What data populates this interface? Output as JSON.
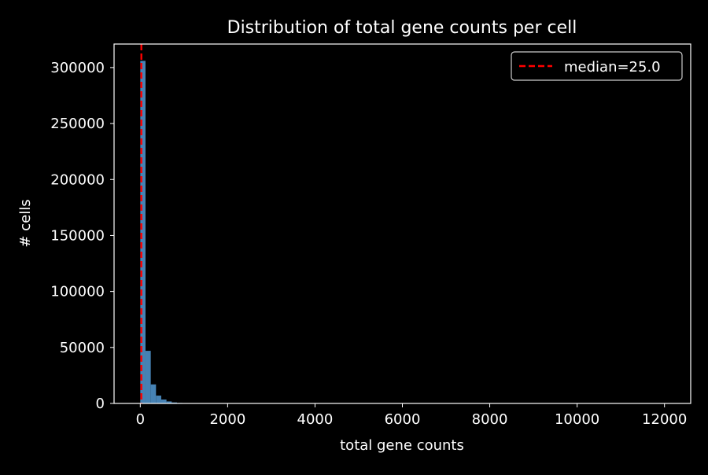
{
  "chart_data": {
    "type": "bar",
    "title": "Distribution of total gene counts per cell",
    "xlabel": "total gene counts",
    "ylabel": "# cells",
    "xlim": [
      -600,
      12600
    ],
    "ylim": [
      0,
      321000
    ],
    "x_ticks": [
      0,
      2000,
      4000,
      6000,
      8000,
      10000,
      12000
    ],
    "y_ticks": [
      0,
      50000,
      100000,
      150000,
      200000,
      250000,
      300000
    ],
    "bin_width": 120,
    "bins": [
      {
        "x0": 0,
        "x1": 120,
        "count": 306000
      },
      {
        "x0": 120,
        "x1": 240,
        "count": 47000
      },
      {
        "x0": 240,
        "x1": 360,
        "count": 17000
      },
      {
        "x0": 360,
        "x1": 480,
        "count": 7000
      },
      {
        "x0": 480,
        "x1": 600,
        "count": 3500
      },
      {
        "x0": 600,
        "x1": 720,
        "count": 1800
      },
      {
        "x0": 720,
        "x1": 840,
        "count": 900
      },
      {
        "x0": 840,
        "x1": 960,
        "count": 450
      },
      {
        "x0": 960,
        "x1": 1080,
        "count": 250
      },
      {
        "x0": 1080,
        "x1": 1200,
        "count": 150
      }
    ],
    "bar_color": "#4682b4",
    "median": {
      "value": 25.0,
      "label": "median=25.0",
      "color": "#ff0000"
    },
    "legend_position": "top-right",
    "grid": false
  }
}
